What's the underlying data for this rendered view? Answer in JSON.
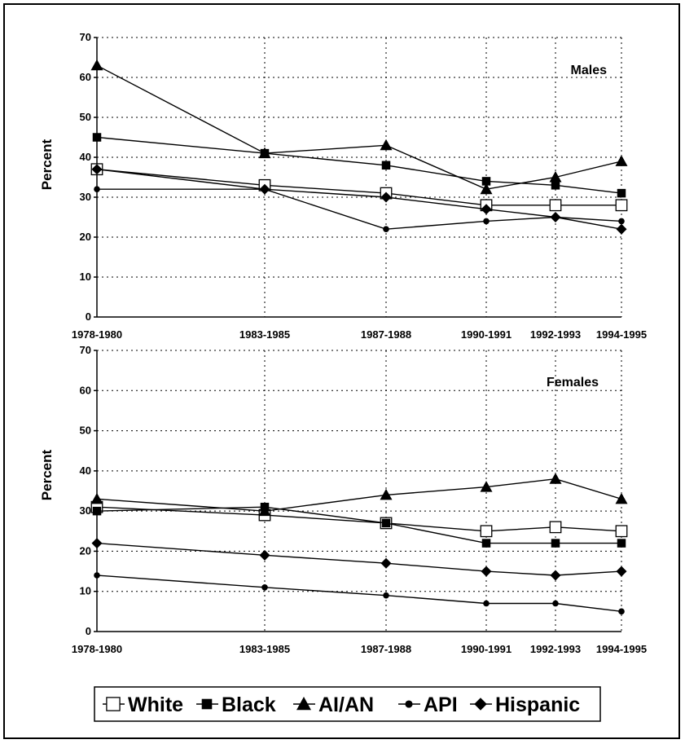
{
  "chart_data": [
    {
      "type": "line",
      "title": "Males",
      "ylabel": "Percent",
      "xlabel": "",
      "ylim": [
        0,
        70
      ],
      "yticks": [
        0,
        10,
        20,
        30,
        40,
        50,
        60,
        70
      ],
      "grid": true,
      "categories": [
        "1978-1980",
        "1983-1985",
        "1987-1988",
        "1990-1991",
        "1992-1993",
        "1994-1995"
      ],
      "series": [
        {
          "name": "White",
          "marker": "open-square",
          "values": [
            37,
            33,
            31,
            28,
            28,
            28
          ]
        },
        {
          "name": "Black",
          "marker": "square",
          "values": [
            45,
            41,
            38,
            34,
            33,
            31
          ]
        },
        {
          "name": "AI/AN",
          "marker": "triangle",
          "values": [
            63,
            41,
            43,
            32,
            35,
            39
          ]
        },
        {
          "name": "API",
          "marker": "circle",
          "values": [
            32,
            32,
            22,
            24,
            25,
            24
          ]
        },
        {
          "name": "Hispanic",
          "marker": "diamond",
          "values": [
            37,
            32,
            30,
            27,
            25,
            22
          ]
        }
      ]
    },
    {
      "type": "line",
      "title": "Females",
      "ylabel": "Percent",
      "xlabel": "",
      "ylim": [
        0,
        70
      ],
      "yticks": [
        0,
        10,
        20,
        30,
        40,
        50,
        60,
        70
      ],
      "grid": true,
      "categories": [
        "1978-1980",
        "1983-1985",
        "1987-1988",
        "1990-1991",
        "1992-1993",
        "1994-1995"
      ],
      "series": [
        {
          "name": "White",
          "marker": "open-square",
          "values": [
            31,
            29,
            27,
            25,
            26,
            25
          ]
        },
        {
          "name": "Black",
          "marker": "square",
          "values": [
            30,
            31,
            27,
            22,
            22,
            22
          ]
        },
        {
          "name": "AI/AN",
          "marker": "triangle",
          "values": [
            33,
            30,
            34,
            36,
            38,
            33
          ]
        },
        {
          "name": "API",
          "marker": "circle",
          "values": [
            14,
            11,
            9,
            7,
            7,
            5
          ]
        },
        {
          "name": "Hispanic",
          "marker": "diamond",
          "values": [
            22,
            19,
            17,
            15,
            14,
            15
          ]
        }
      ]
    }
  ],
  "legend": {
    "placement": "bottom",
    "items": [
      {
        "label": "White",
        "marker": "open-square"
      },
      {
        "label": "Black",
        "marker": "square"
      },
      {
        "label": "AI/AN",
        "marker": "triangle"
      },
      {
        "label": "API",
        "marker": "circle"
      },
      {
        "label": "Hispanic",
        "marker": "diamond"
      }
    ]
  }
}
